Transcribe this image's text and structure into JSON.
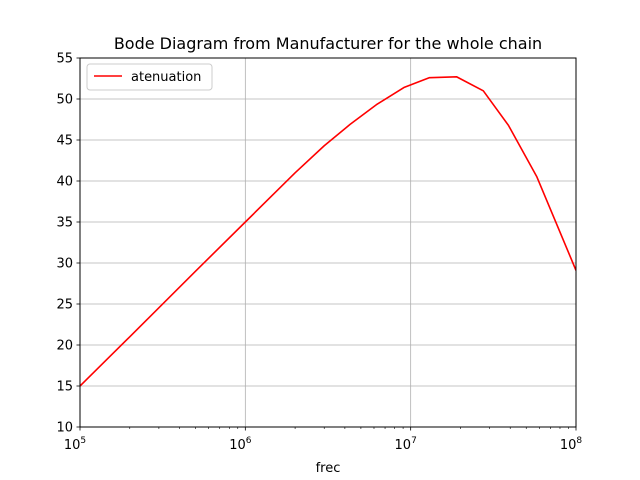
{
  "chart_data": {
    "type": "line",
    "title": "Bode Diagram from Manufacturer for the whole chain",
    "xlabel": "frec",
    "ylabel": "",
    "xscale": "log",
    "xlim": [
      100000,
      100000000
    ],
    "ylim": [
      10,
      55
    ],
    "grid": true,
    "legend_position": "top-left",
    "x_tick_labels": [
      {
        "value": 100000,
        "base": "10",
        "exp": "5"
      },
      {
        "value": 1000000,
        "base": "10",
        "exp": "6"
      },
      {
        "value": 10000000,
        "base": "10",
        "exp": "7"
      },
      {
        "value": 100000000,
        "base": "10",
        "exp": "8"
      }
    ],
    "y_ticks": [
      10,
      15,
      20,
      25,
      30,
      35,
      40,
      45,
      50,
      55
    ],
    "series": [
      {
        "name": "atenuation",
        "color": "#ff0000",
        "x": [
          100000,
          200000,
          500000,
          1000000,
          2000000,
          3000000,
          4300000,
          6200000,
          9100000,
          13000000,
          19000000,
          27500000,
          39000000,
          58000000,
          100000000
        ],
        "y": [
          15.0,
          21.0,
          29.0,
          35.0,
          41.0,
          44.3,
          46.9,
          49.3,
          51.4,
          52.6,
          52.7,
          51.0,
          46.8,
          40.5,
          29.1
        ]
      }
    ]
  }
}
